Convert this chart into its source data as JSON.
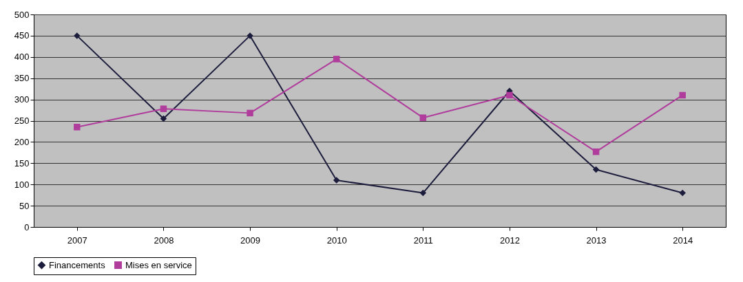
{
  "chart_data": {
    "type": "line",
    "categories": [
      "2007",
      "2008",
      "2009",
      "2010",
      "2011",
      "2012",
      "2013",
      "2014"
    ],
    "series": [
      {
        "name": "Financements",
        "color": "#1c1c3c",
        "marker": "diamond",
        "values": [
          450,
          255,
          450,
          110,
          80,
          320,
          135,
          80
        ]
      },
      {
        "name": "Mises en service",
        "color": "#b03c9c",
        "marker": "square",
        "values": [
          235,
          278,
          268,
          395,
          257,
          310,
          177,
          310
        ]
      }
    ],
    "ylim": [
      0,
      500
    ],
    "yticks": [
      0,
      50,
      100,
      150,
      200,
      250,
      300,
      350,
      400,
      450,
      500
    ],
    "grid": "y",
    "legend": "bottom",
    "line_style": "solid"
  }
}
